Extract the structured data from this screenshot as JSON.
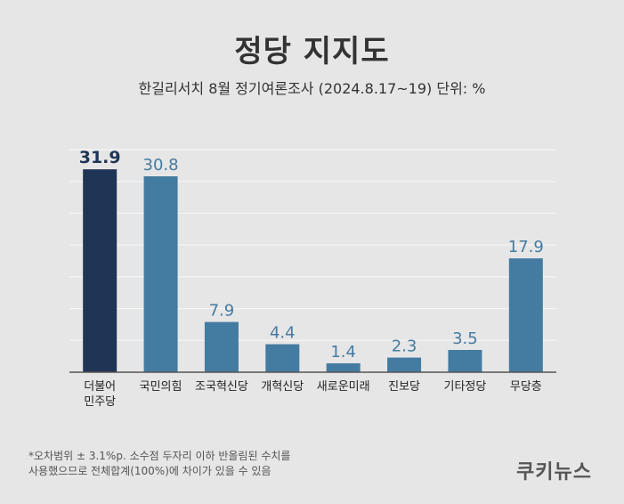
{
  "title": "정당 지지도",
  "subtitle": "한길리서치 8월 정기여론조사 (2024.8.17~19) 단위: %",
  "footnote": "*오차범위 ± 3.1%p. 소수점 두자리 이하 반올림된 수치를\n 사용했으므로 전체합계(100%)에 차이가 있을 수 있음",
  "brand": "쿠키뉴스",
  "colors": {
    "highlight_bar": "#1f3556",
    "bar": "#447ba1",
    "highlight_label": "#1f3556",
    "label": "#447ba1",
    "grid": "#f5f5f5",
    "axis": "#555555",
    "text": "#222222"
  },
  "chart_data": {
    "type": "bar",
    "title": "정당 지지도",
    "subtitle": "한길리서치 8월 정기여론조사 (2024.8.17~19) 단위: %",
    "categories": [
      "더불어\n민주당",
      "국민의힘",
      "조국혁신당",
      "개혁신당",
      "새로운미래",
      "진보당",
      "기타정당",
      "무당층"
    ],
    "values": [
      31.9,
      30.8,
      7.9,
      4.4,
      1.4,
      2.3,
      3.5,
      17.9
    ],
    "value_labels": [
      "31.9",
      "30.8",
      "7.9",
      "4.4",
      "1.4",
      "2.3",
      "3.5",
      "17.9"
    ],
    "highlight_index": 0,
    "ylim": [
      0,
      35
    ],
    "grid": true,
    "legend": "none"
  }
}
